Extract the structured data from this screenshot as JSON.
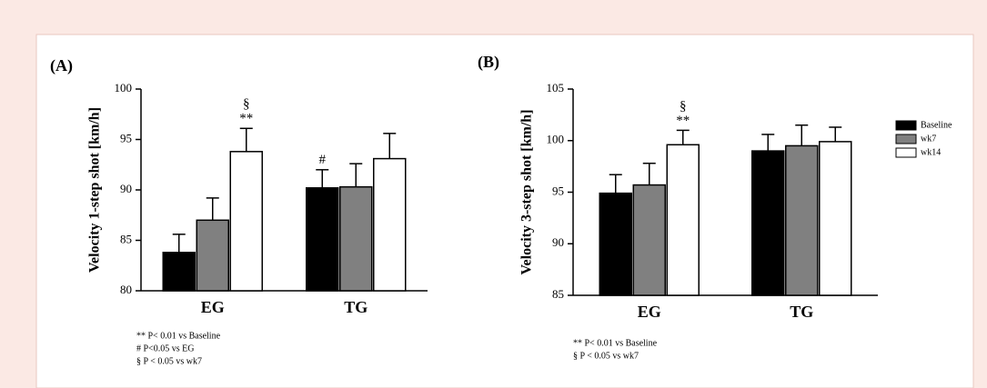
{
  "chart_data": [
    {
      "type": "bar",
      "title": "(A)",
      "y_label": "Velocity 1-step shot [km/h]",
      "categories": [
        "EG",
        "TG"
      ],
      "series": [
        {
          "name": "Baseline",
          "color": "#000000",
          "values": [
            83.8,
            90.2
          ],
          "errors": [
            1.8,
            1.8
          ]
        },
        {
          "name": "wk7",
          "color": "#808080",
          "values": [
            87.0,
            90.3
          ],
          "errors": [
            2.2,
            2.3
          ]
        },
        {
          "name": "wk14",
          "color": "#ffffff",
          "values": [
            93.8,
            93.1
          ],
          "errors": [
            2.3,
            2.5
          ]
        }
      ],
      "ylim": [
        80,
        100
      ],
      "yticks": [
        80,
        85,
        90,
        95,
        100
      ],
      "annotations": [
        {
          "text": "**",
          "category": "EG",
          "series": "wk14",
          "level": 0
        },
        {
          "text": "§",
          "category": "EG",
          "series": "wk14",
          "level": 1
        },
        {
          "text": "#",
          "category": "TG",
          "series": "Baseline",
          "level": 0
        }
      ],
      "footnotes": [
        "** P< 0.01 vs Baseline",
        "# P<0.05 vs EG",
        "§ P < 0.05 vs wk7"
      ]
    },
    {
      "type": "bar",
      "title": "(B)",
      "y_label": "Velocity 3-step shot [km/h]",
      "categories": [
        "EG",
        "TG"
      ],
      "series": [
        {
          "name": "Baseline",
          "color": "#000000",
          "values": [
            94.9,
            99.0
          ],
          "errors": [
            1.8,
            1.6
          ]
        },
        {
          "name": "wk7",
          "color": "#808080",
          "values": [
            95.7,
            99.5
          ],
          "errors": [
            2.1,
            2.0
          ]
        },
        {
          "name": "wk14",
          "color": "#ffffff",
          "values": [
            99.6,
            99.9
          ],
          "errors": [
            1.4,
            1.4
          ]
        }
      ],
      "ylim": [
        85,
        105
      ],
      "yticks": [
        85,
        90,
        95,
        100,
        105
      ],
      "legend": "right",
      "annotations": [
        {
          "text": "**",
          "category": "EG",
          "series": "wk14",
          "level": 0
        },
        {
          "text": "§",
          "category": "EG",
          "series": "wk14",
          "level": 1
        }
      ],
      "footnotes": [
        "** P< 0.01 vs Baseline",
        "§ P < 0.05 vs wk7"
      ]
    }
  ]
}
